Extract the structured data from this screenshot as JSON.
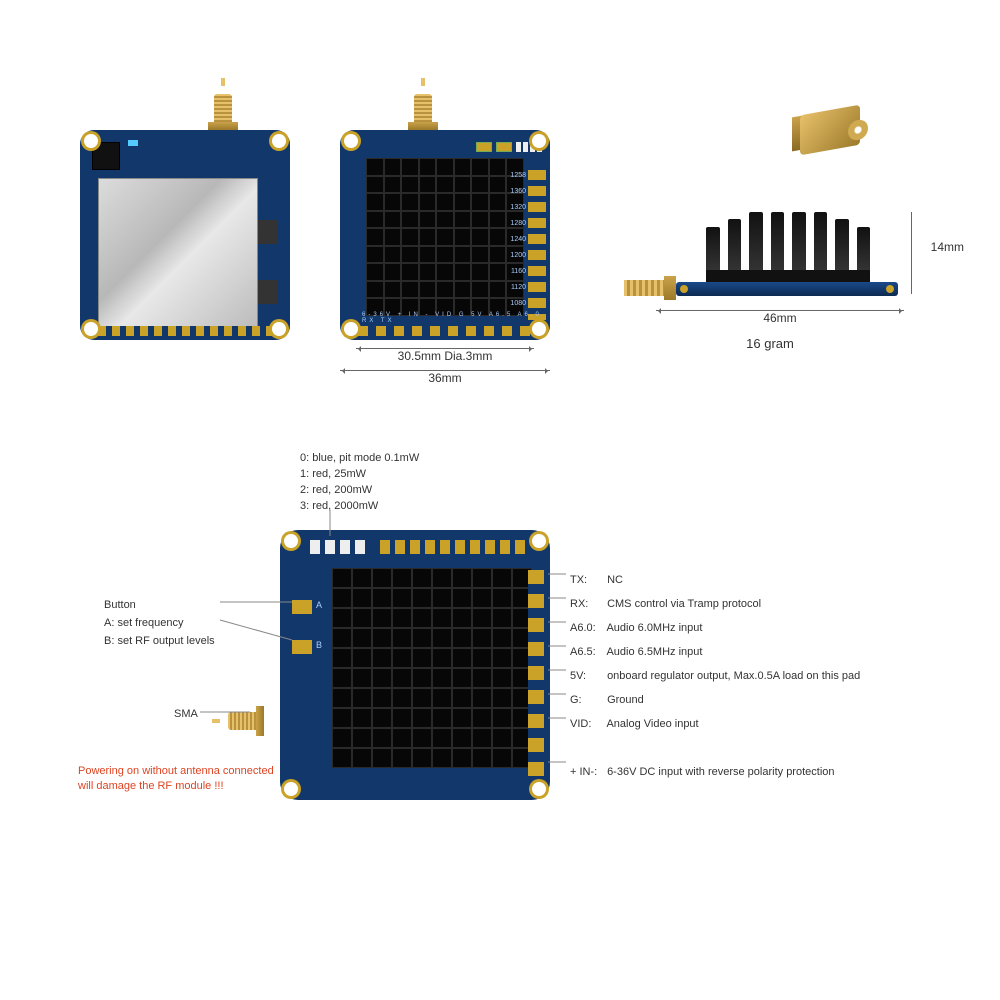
{
  "colors": {
    "pcb": "#12386b",
    "silk": "#a9cdfd",
    "gold": "#c9a227",
    "heatsink": "#0a0a0a",
    "shield": "#c8c8c8",
    "warn": "#d42222",
    "text": "#333333",
    "bg": "#ffffff"
  },
  "dimensions": {
    "hole_pitch": "30.5mm Dia.3mm",
    "board_width": "36mm",
    "length": "46mm",
    "height": "14mm",
    "mass": "16 gram"
  },
  "frequencies": [
    "1258",
    "1360",
    "1320",
    "1280",
    "1240",
    "1200",
    "1160",
    "1120",
    "1080"
  ],
  "pin_silk_bottom": "6-36V  + IN -   VID   G   5V A6.5 A6.0 RX TX",
  "led_modes": [
    "0: blue, pit mode 0.1mW",
    "1: red, 25mW",
    "2: red, 200mW",
    "3: red, 2000mW"
  ],
  "buttons": {
    "heading": "Button",
    "A": "A: set frequency",
    "B": "B: set RF output levels"
  },
  "sma_label": "SMA",
  "warning": "Powering on without antenna connected\nwill damage the RF module !!!",
  "pins": [
    {
      "k": "TX:",
      "v": "NC"
    },
    {
      "k": "RX:",
      "v": "CMS control via Tramp protocol"
    },
    {
      "k": "A6.0:",
      "v": "Audio 6.0MHz input"
    },
    {
      "k": "A6.5:",
      "v": "Audio 6.5MHz input"
    },
    {
      "k": "5V:",
      "v": "onboard regulator output, Max.0.5A load on this pad"
    },
    {
      "k": "G:",
      "v": "Ground"
    },
    {
      "k": "VID:",
      "v": "Analog Video input"
    },
    {
      "k": "",
      "v": ""
    },
    {
      "k": "+ IN-:",
      "v": "6-36V DC input with reverse polarity protection"
    }
  ]
}
